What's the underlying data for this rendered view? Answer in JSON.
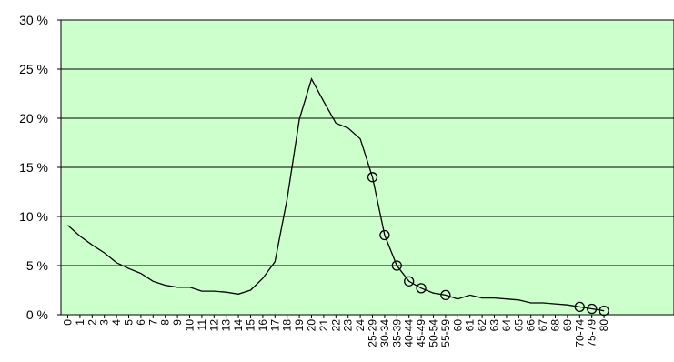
{
  "chart_data": {
    "type": "line",
    "title": "",
    "xlabel": "",
    "ylabel": "",
    "ylim": [
      0,
      30
    ],
    "y_ticks": [
      0,
      5,
      10,
      15,
      20,
      25,
      30
    ],
    "y_tick_labels": [
      "0 %",
      "5 %",
      "10 %",
      "15 %",
      "20 %",
      "25 %",
      "30 %"
    ],
    "grid": "horizontal",
    "plot_background": "#ccffcc",
    "line_color": "#000000",
    "marker": "open-circle",
    "categories": [
      "0",
      "1",
      "2",
      "3",
      "4",
      "5",
      "6",
      "7",
      "8",
      "9",
      "10",
      "11",
      "12",
      "13",
      "14",
      "15",
      "16",
      "17",
      "18",
      "19",
      "20",
      "21",
      "22",
      "23",
      "24",
      "25-29",
      "30-34",
      "35-39",
      "40-44",
      "45-49",
      "50-54",
      "55-59",
      "60",
      "61",
      "62",
      "63",
      "64",
      "65",
      "66",
      "67",
      "68",
      "69",
      "70-74",
      "75-79",
      "80"
    ],
    "series": [
      {
        "values": [
          9.1,
          8.0,
          7.1,
          6.3,
          5.3,
          4.7,
          4.2,
          3.4,
          3.0,
          2.8,
          2.8,
          2.4,
          2.4,
          2.3,
          2.1,
          2.5,
          3.7,
          5.4,
          11.8,
          19.9,
          24.0,
          21.7,
          19.5,
          19.0,
          17.9,
          14.0,
          8.1,
          5.0,
          3.4,
          2.7,
          2.2,
          2.0,
          1.6,
          2.0,
          1.7,
          1.7,
          1.6,
          1.5,
          1.2,
          1.2,
          1.1,
          1.0,
          0.8,
          0.6,
          0.4
        ],
        "markers": [
          25,
          26,
          27,
          28,
          29,
          31,
          42,
          43,
          44
        ]
      }
    ]
  }
}
